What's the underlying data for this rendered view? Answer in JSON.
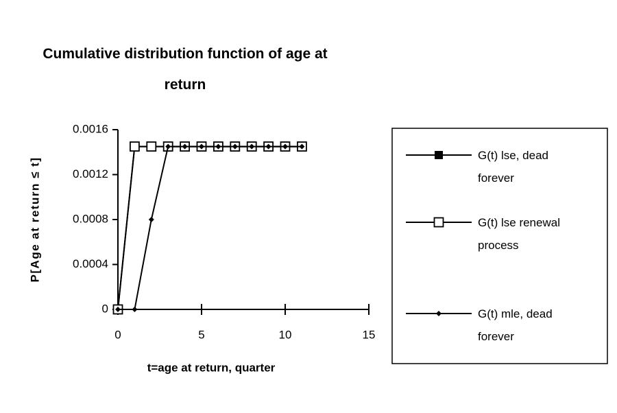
{
  "chart_data": {
    "type": "line",
    "title": "Cumulative distribution function of age at return",
    "x_label": "t=age at return, quarter",
    "y_label": "P[Age at return ≤ t]",
    "x": [
      0,
      1,
      2,
      3,
      4,
      5,
      6,
      7,
      8,
      9,
      10,
      11
    ],
    "series": [
      {
        "name": "G(t) lse, dead forever",
        "color": "#000000",
        "marker": "filled-square",
        "values": [
          0,
          0.00145,
          0.00145,
          0.00145,
          0.00145,
          0.00145,
          0.00145,
          0.00145,
          0.00145,
          0.00145,
          0.00145,
          0.00145
        ]
      },
      {
        "name": "G(t) lse renewal process",
        "color": "#000000",
        "marker": "open-square",
        "values": [
          0,
          0.00145,
          0.00145,
          0.00145,
          0.00145,
          0.00145,
          0.00145,
          0.00145,
          0.00145,
          0.00145,
          0.00145,
          0.00145
        ]
      },
      {
        "name": "G(t) mle, dead forever",
        "color": "#000000",
        "marker": "diamond",
        "values": [
          0,
          0,
          0.0008,
          0.00145,
          0.00145,
          0.00145,
          0.00145,
          0.00145,
          0.00145,
          0.00145,
          0.00145,
          0.00145
        ]
      }
    ],
    "xlim": [
      0,
      15
    ],
    "xticks": [
      0,
      5,
      10,
      15
    ],
    "ylim": [
      0,
      0.0016
    ],
    "yticks": [
      0,
      0.0004,
      0.0008,
      0.0012,
      0.0016
    ],
    "grid": false,
    "legend": "right"
  }
}
